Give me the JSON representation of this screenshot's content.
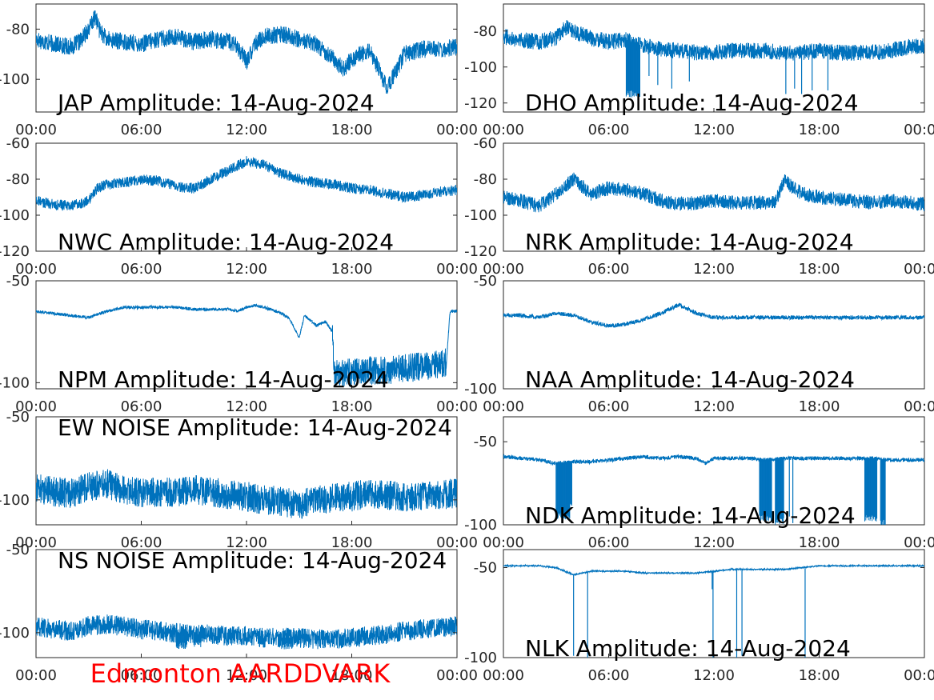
{
  "chart_data": [
    {
      "type": "line",
      "title": "JAP Amplitude: 14-Aug-2024",
      "color": "#0072bd",
      "x_ticks": [
        "00:00",
        "06:00",
        "12:00",
        "18:00",
        "00:00"
      ],
      "xlim": [
        "00:00",
        "24:00"
      ],
      "y_ticks": [
        -80,
        -100
      ],
      "ylim": [
        -113,
        -70
      ],
      "x": [
        0,
        1,
        2,
        2.5,
        3,
        3.4,
        3.6,
        4,
        5,
        6,
        7,
        8,
        9,
        10,
        11,
        11.5,
        12,
        12.5,
        13,
        14,
        15,
        16,
        17,
        17.5,
        18,
        18.5,
        19,
        19.5,
        20,
        21,
        22,
        23,
        24
      ],
      "values": [
        -84,
        -86,
        -87,
        -85,
        -80,
        -75,
        -80,
        -84,
        -85,
        -86,
        -84,
        -83,
        -85,
        -84,
        -85,
        -87,
        -93,
        -86,
        -83,
        -82,
        -84,
        -86,
        -92,
        -96,
        -92,
        -90,
        -89,
        -95,
        -104,
        -90,
        -88,
        -88,
        -87
      ],
      "noise": 3.5
    },
    {
      "type": "line",
      "title": "DHO Amplitude: 14-Aug-2024",
      "color": "#0072bd",
      "x_ticks": [
        "00:00",
        "06:00",
        "12:00",
        "18:00",
        "00:00"
      ],
      "xlim": [
        "00:00",
        "24:00"
      ],
      "y_ticks": [
        -80,
        -100,
        -120
      ],
      "ylim": [
        -125,
        -65
      ],
      "x": [
        0,
        1,
        2,
        3,
        3.5,
        4,
        5,
        6,
        7,
        7.5,
        8,
        9,
        10,
        11,
        12,
        13,
        14,
        15,
        16,
        17,
        18,
        19,
        20,
        21,
        22,
        23,
        24
      ],
      "values": [
        -83,
        -85,
        -86,
        -84,
        -78,
        -80,
        -84,
        -86,
        -85,
        -87,
        -88,
        -90,
        -91,
        -92,
        -92,
        -91,
        -91,
        -91,
        -92,
        -92,
        -91,
        -92,
        -92,
        -92,
        -91,
        -89,
        -88
      ],
      "noise": 4.5,
      "drops": [
        [
          7.0,
          7.8,
          -115
        ],
        [
          8.3,
          -105
        ],
        [
          8.8,
          -110
        ],
        [
          9.6,
          -112
        ],
        [
          10.6,
          -108
        ],
        [
          16.1,
          -115
        ],
        [
          16.6,
          -112
        ],
        [
          17.0,
          -115
        ],
        [
          17.6,
          -113
        ],
        [
          18.5,
          -113
        ]
      ]
    },
    {
      "type": "line",
      "title": "NWC Amplitude: 14-Aug-2024",
      "color": "#0072bd",
      "x_ticks": [
        "00:00",
        "06:00",
        "12:00",
        "18:00",
        "00:00"
      ],
      "xlim": [
        "00:00",
        "24:00"
      ],
      "y_ticks": [
        -60,
        -80,
        -100,
        -120
      ],
      "ylim": [
        -120,
        -60
      ],
      "x": [
        0,
        1,
        2,
        3,
        3.5,
        4,
        5,
        6,
        7,
        8,
        9,
        10,
        11,
        12,
        13,
        14,
        15,
        16,
        17,
        18,
        19,
        20,
        21,
        22,
        23,
        24
      ],
      "values": [
        -92,
        -94,
        -95,
        -92,
        -85,
        -83,
        -82,
        -80,
        -81,
        -84,
        -85,
        -80,
        -75,
        -70,
        -72,
        -77,
        -80,
        -82,
        -83,
        -85,
        -86,
        -88,
        -90,
        -89,
        -87,
        -86
      ],
      "noise": 3.0
    },
    {
      "type": "line",
      "title": "NRK Amplitude: 14-Aug-2024",
      "color": "#0072bd",
      "x_ticks": [
        "00:00",
        "06:00",
        "12:00",
        "18:00",
        "00:00"
      ],
      "xlim": [
        "00:00",
        "24:00"
      ],
      "y_ticks": [
        -60,
        -80,
        -100,
        -120
      ],
      "ylim": [
        -120,
        -60
      ],
      "x": [
        0,
        1,
        2,
        3,
        3.5,
        4,
        5,
        6,
        7,
        8,
        9,
        10,
        11,
        12,
        13,
        14,
        15,
        15.5,
        16,
        17,
        18,
        19,
        20,
        21,
        22,
        23,
        24
      ],
      "values": [
        -90,
        -92,
        -95,
        -88,
        -84,
        -80,
        -88,
        -85,
        -86,
        -88,
        -92,
        -94,
        -93,
        -92,
        -93,
        -93,
        -93,
        -93,
        -81,
        -88,
        -90,
        -91,
        -92,
        -93,
        -92,
        -93,
        -94
      ],
      "noise": 4.0
    },
    {
      "type": "line",
      "title": "NPM Amplitude: 14-Aug-2024",
      "color": "#0072bd",
      "x_ticks": [
        "00:00",
        "06:00",
        "12:00",
        "18:00",
        "00:00"
      ],
      "xlim": [
        "00:00",
        "24:00"
      ],
      "y_ticks": [
        -50,
        -100
      ],
      "ylim": [
        -103,
        -50
      ],
      "x": [
        0,
        1,
        2,
        3,
        4,
        5,
        6,
        7,
        8,
        9,
        10,
        11,
        11.5,
        12,
        12.5,
        13,
        14,
        14.5,
        15,
        15.3,
        16,
        16.5,
        16.9,
        17,
        18,
        19,
        20,
        21,
        22,
        23,
        23.4,
        23.6,
        24
      ],
      "values": [
        -65,
        -66,
        -67,
        -68,
        -65,
        -63,
        -63,
        -63,
        -63,
        -64,
        -64,
        -64,
        -65,
        -63,
        -62,
        -63,
        -66,
        -69,
        -78,
        -67,
        -72,
        -70,
        -75,
        -96,
        -95,
        -94,
        -94,
        -93,
        -92,
        -91,
        -90,
        -65,
        -65
      ],
      "noise": 0.8,
      "noisy_from": 16.9,
      "noisy_to": 23.4,
      "noisy_amp": 7
    },
    {
      "type": "line",
      "title": "NAA Amplitude: 14-Aug-2024",
      "color": "#0072bd",
      "x_ticks": [
        "00:00",
        "06:00",
        "12:00",
        "18:00",
        "00:00"
      ],
      "xlim": [
        "00:00",
        "24:00"
      ],
      "y_ticks": [
        -50,
        -100
      ],
      "ylim": [
        -100,
        -50
      ],
      "x": [
        0,
        1,
        2,
        3,
        4,
        5,
        6,
        7,
        8,
        9,
        10,
        11,
        12,
        13,
        14,
        15,
        16,
        17,
        18,
        19,
        20,
        21,
        22,
        23,
        24
      ],
      "values": [
        -66,
        -66,
        -67,
        -65,
        -66,
        -69,
        -71,
        -70,
        -68,
        -65,
        -61,
        -65,
        -67,
        -67,
        -67,
        -67,
        -67,
        -67,
        -67,
        -67,
        -67,
        -67,
        -67,
        -67,
        -67
      ],
      "noise": 1.0
    },
    {
      "type": "line",
      "title": "EW NOISE Amplitude: 14-Aug-2024",
      "color": "#0072bd",
      "x_ticks": [
        "00:00",
        "06:00",
        "12:00",
        "18:00",
        "00:00"
      ],
      "xlim": [
        "00:00",
        "24:00"
      ],
      "y_ticks": [
        -50,
        -100
      ],
      "ylim": [
        -115,
        -50
      ],
      "x": [
        0,
        1,
        2,
        3,
        4,
        5,
        6,
        7,
        8,
        9,
        10,
        11,
        12,
        13,
        14,
        15,
        16,
        17,
        18,
        19,
        20,
        21,
        22,
        23,
        24
      ],
      "values": [
        -93,
        -95,
        -96,
        -92,
        -90,
        -94,
        -96,
        -95,
        -96,
        -94,
        -95,
        -97,
        -98,
        -100,
        -101,
        -103,
        -100,
        -99,
        -98,
        -96,
        -97,
        -98,
        -98,
        -97,
        -96
      ],
      "noise": 9.0
    },
    {
      "type": "line",
      "title": "NDK Amplitude: 14-Aug-2024",
      "color": "#0072bd",
      "x_ticks": [
        "00:00",
        "06:00",
        "12:00",
        "18:00",
        "00:00"
      ],
      "xlim": [
        "00:00",
        "24:00"
      ],
      "y_ticks": [
        -50,
        -100
      ],
      "ylim": [
        -100,
        -35
      ],
      "x": [
        0,
        1,
        2,
        3,
        4,
        5,
        6,
        7,
        8,
        9,
        10,
        11,
        11.5,
        12,
        13,
        14,
        15,
        16,
        17,
        18,
        19,
        20,
        21,
        22,
        23,
        24
      ],
      "values": [
        -59,
        -60,
        -61,
        -63,
        -62,
        -62,
        -61,
        -60,
        -59,
        -60,
        -59,
        -60,
        -63,
        -60,
        -60,
        -60,
        -61,
        -60,
        -60,
        -60,
        -60,
        -60,
        -60,
        -61,
        -61,
        -61
      ],
      "noise": 1.2,
      "drops": [
        [
          3.0,
          3.8,
          -95
        ],
        [
          3.6,
          3.9,
          -88
        ],
        [
          14.6,
          15.3,
          -96
        ],
        [
          15.5,
          16.0,
          -98
        ],
        [
          16.3,
          -95
        ],
        [
          16.5,
          -99
        ],
        [
          20.6,
          21.3,
          -96
        ],
        [
          21.5,
          21.8,
          -99
        ]
      ]
    },
    {
      "type": "line",
      "title": "NS NOISE Amplitude: 14-Aug-2024",
      "color": "#0072bd",
      "x_ticks": [
        "00:00",
        "06:00",
        "12:00",
        "18:00",
        "00:00"
      ],
      "xlim": [
        "00:00",
        "24:00"
      ],
      "y_ticks": [
        -50,
        -100
      ],
      "ylim": [
        -115,
        -50
      ],
      "x": [
        0,
        1,
        2,
        3,
        4,
        5,
        6,
        7,
        8,
        9,
        10,
        11,
        12,
        13,
        14,
        15,
        16,
        17,
        18,
        19,
        20,
        21,
        22,
        23,
        24
      ],
      "values": [
        -96,
        -98,
        -99,
        -96,
        -95,
        -96,
        -98,
        -99,
        -100,
        -101,
        -101,
        -102,
        -102,
        -103,
        -103,
        -103,
        -104,
        -104,
        -103,
        -102,
        -101,
        -99,
        -98,
        -97,
        -96
      ],
      "noise": 6.0,
      "drops": [
        [
          8.0,
          8.6,
          -108
        ],
        [
          9.0,
          9.4,
          -107
        ],
        [
          14.0,
          14.6,
          -108
        ]
      ]
    },
    {
      "type": "line",
      "title": "NLK Amplitude: 14-Aug-2024",
      "color": "#0072bd",
      "x_ticks": [
        "00:00",
        "06:00",
        "12:00",
        "18:00",
        "00:00"
      ],
      "xlim": [
        "00:00",
        "24:00"
      ],
      "y_ticks": [
        -50,
        -100
      ],
      "ylim": [
        -100,
        -40
      ],
      "x": [
        0,
        1,
        2,
        3,
        4,
        5,
        6,
        7,
        8,
        9,
        10,
        11,
        12,
        13,
        14,
        15,
        16,
        17,
        18,
        19,
        20,
        21,
        22,
        23,
        24
      ],
      "values": [
        -49,
        -49,
        -49,
        -50,
        -54,
        -52,
        -52,
        -52,
        -53,
        -53,
        -53,
        -53,
        -52,
        -51,
        -51,
        -51,
        -51,
        -50,
        -49,
        -49,
        -49,
        -49,
        -49,
        -49,
        -49
      ],
      "noise": 0.4,
      "drops": [
        [
          4.0,
          -99
        ],
        [
          4.8,
          -100
        ],
        [
          11.9,
          -62
        ],
        [
          11.95,
          -100
        ],
        [
          13.3,
          -100
        ],
        [
          13.6,
          -99
        ],
        [
          17.2,
          -100
        ]
      ]
    }
  ],
  "footer": {
    "text": "Edmonton AARDDVARK",
    "color": "#ff0000"
  }
}
